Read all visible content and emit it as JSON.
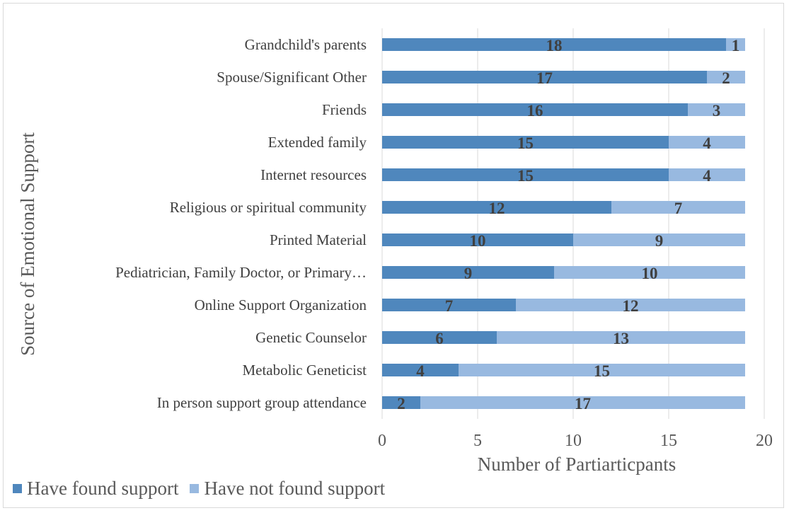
{
  "chart_data": {
    "type": "bar",
    "orientation": "horizontal",
    "stacked": true,
    "title": "",
    "xlabel": "Number of Partiarticpants",
    "ylabel": "Source of Emotional Support",
    "xlim": [
      0,
      20
    ],
    "xticks": [
      0,
      5,
      10,
      15,
      20
    ],
    "grid": true,
    "legend_position": "bottom-left",
    "categories": [
      "Grandchild's parents",
      "Spouse/Significant Other",
      "Friends",
      "Extended family",
      "Internet resources",
      "Religious or spiritual community",
      "Printed Material",
      "Pediatrician, Family Doctor, or Primary…",
      "Online Support Organization",
      "Genetic Counselor",
      "Metabolic Geneticist",
      "In person support group attendance"
    ],
    "series": [
      {
        "name": "Have found support",
        "color": "#4f87bd",
        "values": [
          18,
          17,
          16,
          15,
          15,
          12,
          10,
          9,
          7,
          6,
          4,
          2
        ]
      },
      {
        "name": "Have not found support",
        "color": "#98b9e0",
        "values": [
          1,
          2,
          3,
          4,
          4,
          7,
          9,
          10,
          12,
          13,
          15,
          17
        ]
      }
    ]
  }
}
